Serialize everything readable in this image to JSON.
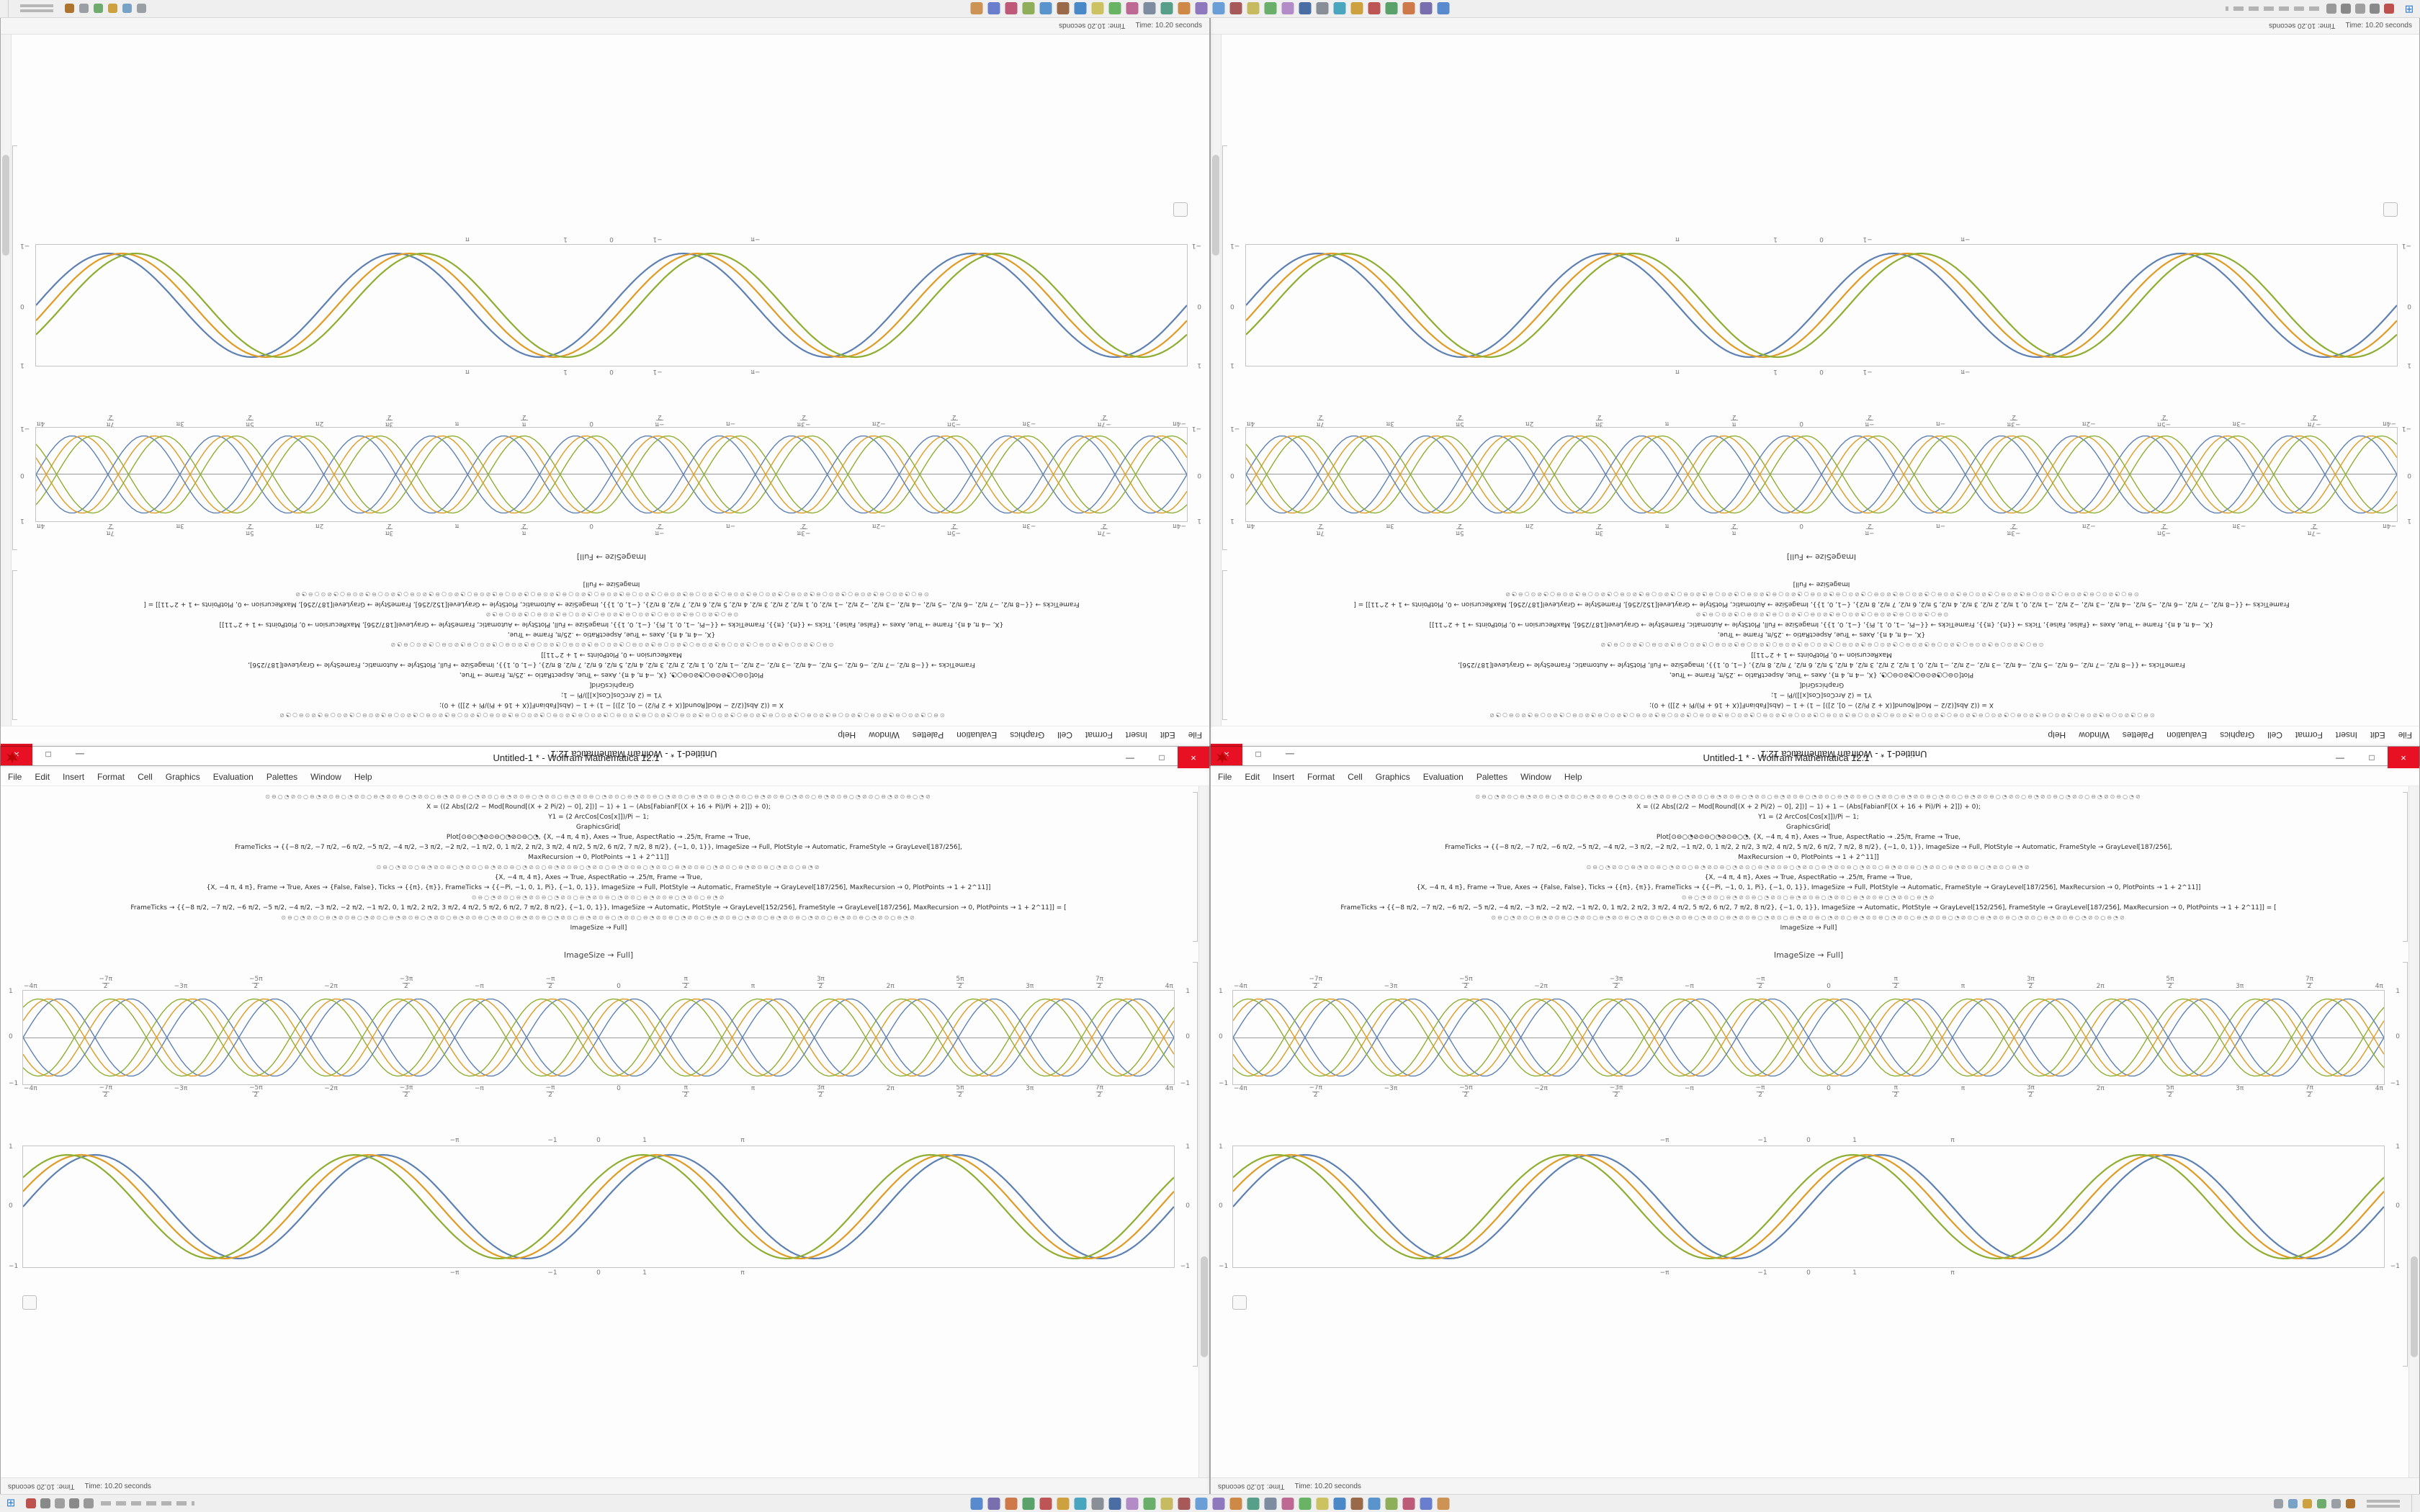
{
  "window": {
    "title": "Untitled-1 * - Wolfram Mathematica 12.1",
    "menus": [
      "File",
      "Edit",
      "Insert",
      "Format",
      "Cell",
      "Graphics",
      "Evaluation",
      "Palettes",
      "Window",
      "Help"
    ],
    "controls": {
      "minimize": "—",
      "maximize": "□",
      "close": "×"
    },
    "close_color": "#e81123"
  },
  "statusbar": {
    "time_label": "Time: 10.20 seconds"
  },
  "output_label": "ImageSize → Full]",
  "code": {
    "lines": [
      {
        "cls": "glyph",
        "text": "⊙⊖○◔⊘⊙○⊖◔⊘⊙⊖○◔⊘⊙○⊖◔⊘⊙⊖○◔⊘⊙○⊖◔⊘⊙⊖○◔⊘⊙○⊖◔⊘⊙⊖○◔⊘⊙○⊖◔⊘⊙⊖○◔⊘⊙○⊖◔⊘⊙⊖○◔⊘⊙○⊖◔⊘⊙⊖○◔⊘⊙○⊖◔⊘⊙⊖○◔⊘⊙○⊖◔⊘⊙⊖○◔⊘⊙○⊖◔⊘⊙⊖○◔⊘"
      },
      {
        "cls": "code",
        "text": "X = ((2 Abs[(2/2 − Mod[Round[(X + 2 Pi/2) − 0], 2])] − 1) + 1 − (Abs[FabianF[(X + 16 + Pi)/Pi + 2]]) + 0);"
      },
      {
        "cls": "code",
        "text": "Y1 = (2 ArcCos[Cos[x]])/Pi − 1;"
      },
      {
        "cls": "code",
        "text": "GraphicsGrid["
      },
      {
        "cls": "code",
        "text": "Plot[⊙⊖○◔⊘⊙⊖○◔⊘⊙⊖○◔, {X, −4 π, 4 π}, Axes → True, AspectRatio → .25/π, Frame → True,"
      },
      {
        "cls": "code",
        "text": "FrameTicks → {{−8 π/2, −7 π/2, −6 π/2, −5 π/2, −4 π/2, −3 π/2, −2 π/2, −1 π/2, 0, 1 π/2, 2 π/2, 3 π/2, 4 π/2, 5 π/2, 6 π/2, 7 π/2, 8 π/2}, {−1, 0, 1}}, ImageSize → Full, PlotStyle → Automatic, FrameStyle → GrayLevel[187/256],"
      },
      {
        "cls": "code",
        "text": "MaxRecursion → 0, PlotPoints → 1 + 2^11]]"
      },
      {
        "cls": "glyph",
        "text": "⊙⊖○◔⊘⊙○⊖◔⊘⊙⊖○◔⊘⊙○⊖◔⊘⊙⊖○◔⊘⊙○⊖◔⊘⊙⊖○◔⊘⊙○⊖◔⊘⊙⊖○◔⊘⊙○⊖◔⊘⊙⊖○◔⊘⊙○⊖◔⊘⊙⊖○◔⊘⊙○⊖◔⊘"
      },
      {
        "cls": "code",
        "text": "{X, −4 π, 4 π}, Axes → True, AspectRatio → .25/π, Frame → True,"
      },
      {
        "cls": "code",
        "text": "{X, −4 π, 4 π}, Frame → True, Axes → {False, False}, Ticks → {{π}, {π}}, FrameTicks → {{−Pi, −1, 0, 1, Pi}, {−1, 0, 1}}, ImageSize → Full, PlotStyle → Automatic, FrameStyle → GrayLevel[187/256], MaxRecursion → 0, PlotPoints → 1 + 2^11]]"
      },
      {
        "cls": "glyph",
        "text": "⊙⊖○◔⊘⊙○⊖◔⊘⊙⊖○◔⊘⊙○⊖◔⊘⊙⊖○◔⊘⊙○⊖◔⊘⊙⊖○◔⊘⊙○⊖◔⊘"
      },
      {
        "cls": "code",
        "text": "FrameTicks → {{−8 π/2, −7 π/2, −6 π/2, −5 π/2, −4 π/2, −3 π/2, −2 π/2, −1 π/2, 0, 1 π/2, 2 π/2, 3 π/2, 4 π/2, 5 π/2, 6 π/2, 7 π/2, 8 π/2}, {−1, 0, 1}}, ImageSize → Automatic, PlotStyle → GrayLevel[152/256], FrameStyle → GrayLevel[187/256], MaxRecursion → 0, PlotPoints → 1 + 2^11]] = ["
      },
      {
        "cls": "glyph",
        "text": "⊙⊖○◔⊘⊙○⊖◔⊘⊙⊖○◔⊘⊙○⊖◔⊘⊙⊖○◔⊘⊙○⊖◔⊘⊙⊖○◔⊘⊙○⊖◔⊘⊙⊖○◔⊘⊙○⊖◔⊘⊙⊖○◔⊘⊙○⊖◔⊘⊙⊖○◔⊘⊙○⊖◔⊘⊙⊖○◔⊘⊙○⊖◔⊘⊙⊖○◔⊘⊙○⊖◔⊘⊙⊖○◔⊘⊙○⊖◔⊘"
      },
      {
        "cls": "code",
        "text": "ImageSize → Full]"
      }
    ]
  },
  "plots": {
    "braid": {
      "height": 130,
      "cycles": 8,
      "sw": 1.4,
      "curves": [
        {
          "color": "#5e81b5",
          "amp": 0.88,
          "phase": 0,
          "sign": 1
        },
        {
          "color": "#e19c24",
          "amp": 0.88,
          "phase": 0.45,
          "sign": 1
        },
        {
          "color": "#8fb032",
          "amp": 0.88,
          "phase": 0.9,
          "sign": 1
        },
        {
          "color": "#5e81b5",
          "amp": 0.88,
          "phase": 0,
          "sign": -1
        },
        {
          "color": "#e19c24",
          "amp": 0.88,
          "phase": 0.45,
          "sign": -1
        },
        {
          "color": "#8fb032",
          "amp": 0.88,
          "phase": 0.9,
          "sign": -1
        }
      ],
      "xticks": [
        "−4π",
        "−7π/2",
        "−3π",
        "−5π/2",
        "−2π",
        "−3π/2",
        "−π",
        "−π/2",
        "0",
        "π/2",
        "π",
        "3π/2",
        "2π",
        "5π/2",
        "3π",
        "7π/2",
        "4π"
      ],
      "yticks": [
        "1",
        "0",
        "−1"
      ]
    },
    "smooth": {
      "height": 168,
      "cycles": 4,
      "sw": 2.2,
      "curves": [
        {
          "color": "#5e81b5",
          "amp": 0.9,
          "phase": 0,
          "sign": 1
        },
        {
          "color": "#e19c24",
          "amp": 0.9,
          "phase": 0.3,
          "sign": 1
        },
        {
          "color": "#8fb032",
          "amp": 0.9,
          "phase": 0.6,
          "sign": 1
        }
      ],
      "xticks": [
        {
          "t": "−π",
          "x": 37.5
        },
        {
          "t": "−1",
          "x": 46.0
        },
        {
          "t": "0",
          "x": 50.0
        },
        {
          "t": "1",
          "x": 54.0
        },
        {
          "t": "π",
          "x": 62.5
        }
      ],
      "yticks": [
        "1",
        "0",
        "−1"
      ]
    }
  },
  "taskbar": {
    "start_glyph": "⊞",
    "left_icons": [
      "#c0504d",
      "#8a8a8a",
      "#a0a0a0",
      "#8a8a8a",
      "#9a9a9a"
    ],
    "app_icons": [
      "#5b8bd0",
      "#7a6fb0",
      "#d07a4a",
      "#5aa36a",
      "#c05555",
      "#cfa23f",
      "#4aa6c0",
      "#8a8f98",
      "#4a6fa5",
      "#b58cc9",
      "#6ab06a",
      "#c9bd63",
      "#a85a5a",
      "#6aa0d8",
      "#8f79c0",
      "#cf8a45",
      "#58a08a",
      "#7f8da0",
      "#bf6a95",
      "#6ab665",
      "#cfc463",
      "#4a89c9",
      "#9a6a4a",
      "#5a95cf",
      "#8fb05a",
      "#bf5a7a",
      "#6a7fcf",
      "#cf9455"
    ],
    "tray_icons": [
      "#9aa0a6",
      "#7aa3c9",
      "#cfa23f",
      "#6fae6f",
      "#9aa0a6",
      "#b0752f"
    ]
  },
  "colors": {
    "curve_blue": "#5e81b5",
    "curve_gold": "#e19c24",
    "curve_olive": "#8fb032",
    "close_red": "#e81123",
    "frame_gray": "#c6c6c6"
  }
}
